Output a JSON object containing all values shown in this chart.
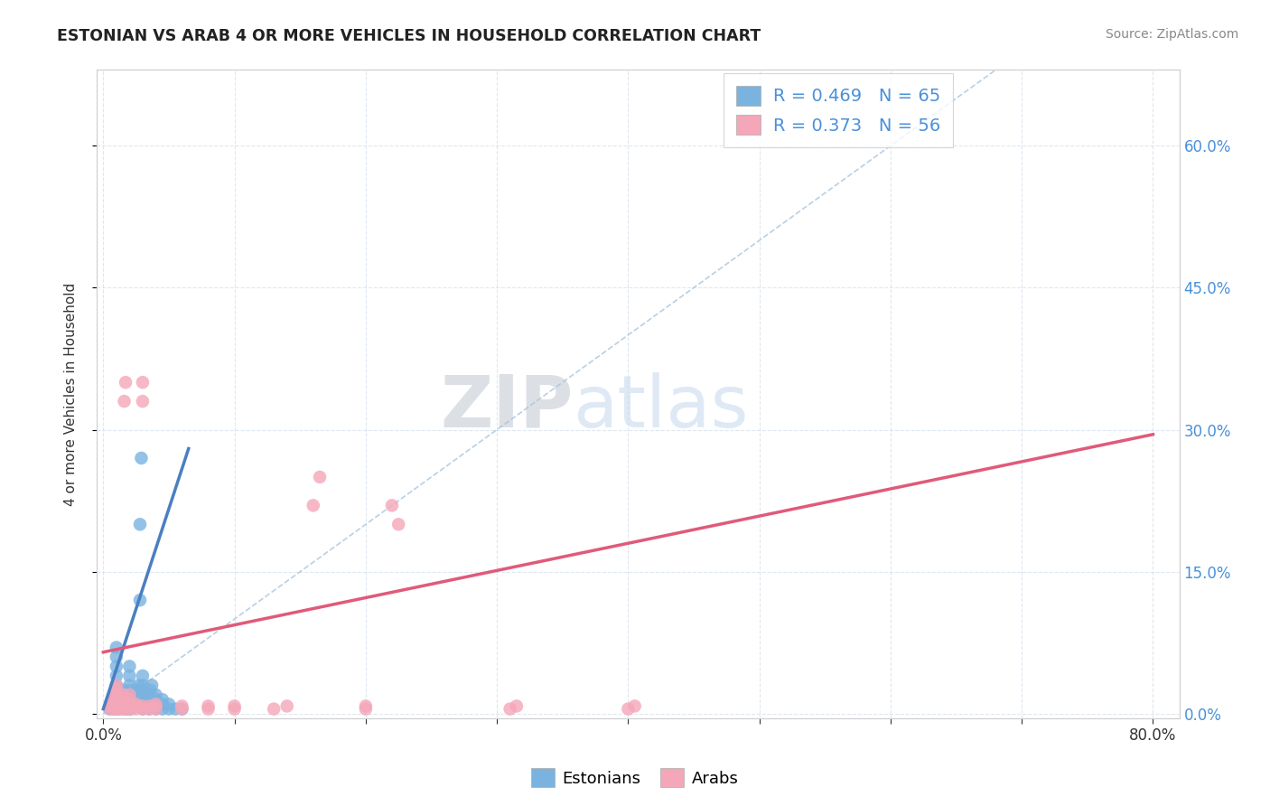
{
  "title": "ESTONIAN VS ARAB 4 OR MORE VEHICLES IN HOUSEHOLD CORRELATION CHART",
  "source": "Source: ZipAtlas.com",
  "xlabel": "",
  "ylabel": "4 or more Vehicles in Household",
  "xlim": [
    -0.005,
    0.82
  ],
  "ylim": [
    -0.005,
    0.68
  ],
  "xtick_pos": [
    0.0,
    0.1,
    0.2,
    0.3,
    0.4,
    0.5,
    0.6,
    0.7,
    0.8
  ],
  "xtick_labels": [
    "0.0%",
    "",
    "",
    "",
    "",
    "",
    "",
    "",
    "80.0%"
  ],
  "ytick_pos": [
    0.0,
    0.15,
    0.3,
    0.45,
    0.6
  ],
  "ytick_right_labels": [
    "0.0%",
    "15.0%",
    "30.0%",
    "45.0%",
    "60.0%"
  ],
  "estonian_color": "#7ab3e0",
  "arab_color": "#f4a7b9",
  "estonian_line_color": "#4a7fc1",
  "arab_line_color": "#e05a7a",
  "ref_line_color": "#a8c4dc",
  "R_estonian": 0.469,
  "N_estonian": 65,
  "R_arab": 0.373,
  "N_arab": 56,
  "background_color": "#ffffff",
  "estonian_points": [
    [
      0.005,
      0.005
    ],
    [
      0.006,
      0.01
    ],
    [
      0.007,
      0.015
    ],
    [
      0.008,
      0.005
    ],
    [
      0.009,
      0.02
    ],
    [
      0.01,
      0.005
    ],
    [
      0.01,
      0.01
    ],
    [
      0.01,
      0.015
    ],
    [
      0.01,
      0.02
    ],
    [
      0.01,
      0.03
    ],
    [
      0.01,
      0.04
    ],
    [
      0.01,
      0.05
    ],
    [
      0.01,
      0.06
    ],
    [
      0.01,
      0.07
    ],
    [
      0.012,
      0.005
    ],
    [
      0.013,
      0.008
    ],
    [
      0.014,
      0.01
    ],
    [
      0.015,
      0.015
    ],
    [
      0.015,
      0.025
    ],
    [
      0.016,
      0.005
    ],
    [
      0.017,
      0.01
    ],
    [
      0.018,
      0.005
    ],
    [
      0.019,
      0.008
    ],
    [
      0.02,
      0.005
    ],
    [
      0.02,
      0.01
    ],
    [
      0.02,
      0.015
    ],
    [
      0.02,
      0.02
    ],
    [
      0.02,
      0.025
    ],
    [
      0.02,
      0.03
    ],
    [
      0.02,
      0.04
    ],
    [
      0.02,
      0.05
    ],
    [
      0.021,
      0.005
    ],
    [
      0.022,
      0.008
    ],
    [
      0.023,
      0.01
    ],
    [
      0.024,
      0.015
    ],
    [
      0.025,
      0.02
    ],
    [
      0.026,
      0.025
    ],
    [
      0.027,
      0.03
    ],
    [
      0.028,
      0.12
    ],
    [
      0.028,
      0.2
    ],
    [
      0.029,
      0.27
    ],
    [
      0.03,
      0.005
    ],
    [
      0.03,
      0.01
    ],
    [
      0.03,
      0.015
    ],
    [
      0.03,
      0.02
    ],
    [
      0.03,
      0.025
    ],
    [
      0.03,
      0.03
    ],
    [
      0.03,
      0.04
    ],
    [
      0.035,
      0.005
    ],
    [
      0.035,
      0.01
    ],
    [
      0.035,
      0.015
    ],
    [
      0.035,
      0.02
    ],
    [
      0.036,
      0.025
    ],
    [
      0.037,
      0.03
    ],
    [
      0.04,
      0.005
    ],
    [
      0.04,
      0.01
    ],
    [
      0.04,
      0.015
    ],
    [
      0.04,
      0.02
    ],
    [
      0.045,
      0.005
    ],
    [
      0.045,
      0.01
    ],
    [
      0.045,
      0.015
    ],
    [
      0.05,
      0.005
    ],
    [
      0.05,
      0.01
    ],
    [
      0.055,
      0.005
    ],
    [
      0.06,
      0.005
    ]
  ],
  "arab_points": [
    [
      0.005,
      0.005
    ],
    [
      0.006,
      0.008
    ],
    [
      0.007,
      0.01
    ],
    [
      0.008,
      0.015
    ],
    [
      0.009,
      0.005
    ],
    [
      0.01,
      0.005
    ],
    [
      0.01,
      0.01
    ],
    [
      0.01,
      0.015
    ],
    [
      0.01,
      0.02
    ],
    [
      0.01,
      0.025
    ],
    [
      0.01,
      0.03
    ],
    [
      0.012,
      0.005
    ],
    [
      0.013,
      0.008
    ],
    [
      0.014,
      0.01
    ],
    [
      0.015,
      0.005
    ],
    [
      0.015,
      0.01
    ],
    [
      0.015,
      0.015
    ],
    [
      0.015,
      0.02
    ],
    [
      0.016,
      0.33
    ],
    [
      0.017,
      0.35
    ],
    [
      0.018,
      0.005
    ],
    [
      0.019,
      0.008
    ],
    [
      0.02,
      0.005
    ],
    [
      0.02,
      0.01
    ],
    [
      0.02,
      0.015
    ],
    [
      0.02,
      0.02
    ],
    [
      0.025,
      0.005
    ],
    [
      0.025,
      0.008
    ],
    [
      0.025,
      0.01
    ],
    [
      0.03,
      0.005
    ],
    [
      0.03,
      0.008
    ],
    [
      0.03,
      0.33
    ],
    [
      0.03,
      0.35
    ],
    [
      0.035,
      0.005
    ],
    [
      0.035,
      0.008
    ],
    [
      0.04,
      0.005
    ],
    [
      0.04,
      0.008
    ],
    [
      0.04,
      0.01
    ],
    [
      0.06,
      0.005
    ],
    [
      0.06,
      0.008
    ],
    [
      0.08,
      0.005
    ],
    [
      0.08,
      0.008
    ],
    [
      0.1,
      0.005
    ],
    [
      0.1,
      0.008
    ],
    [
      0.13,
      0.005
    ],
    [
      0.14,
      0.008
    ],
    [
      0.16,
      0.22
    ],
    [
      0.165,
      0.25
    ],
    [
      0.2,
      0.005
    ],
    [
      0.2,
      0.008
    ],
    [
      0.22,
      0.22
    ],
    [
      0.225,
      0.2
    ],
    [
      0.31,
      0.005
    ],
    [
      0.315,
      0.008
    ],
    [
      0.4,
      0.005
    ],
    [
      0.405,
      0.008
    ]
  ]
}
